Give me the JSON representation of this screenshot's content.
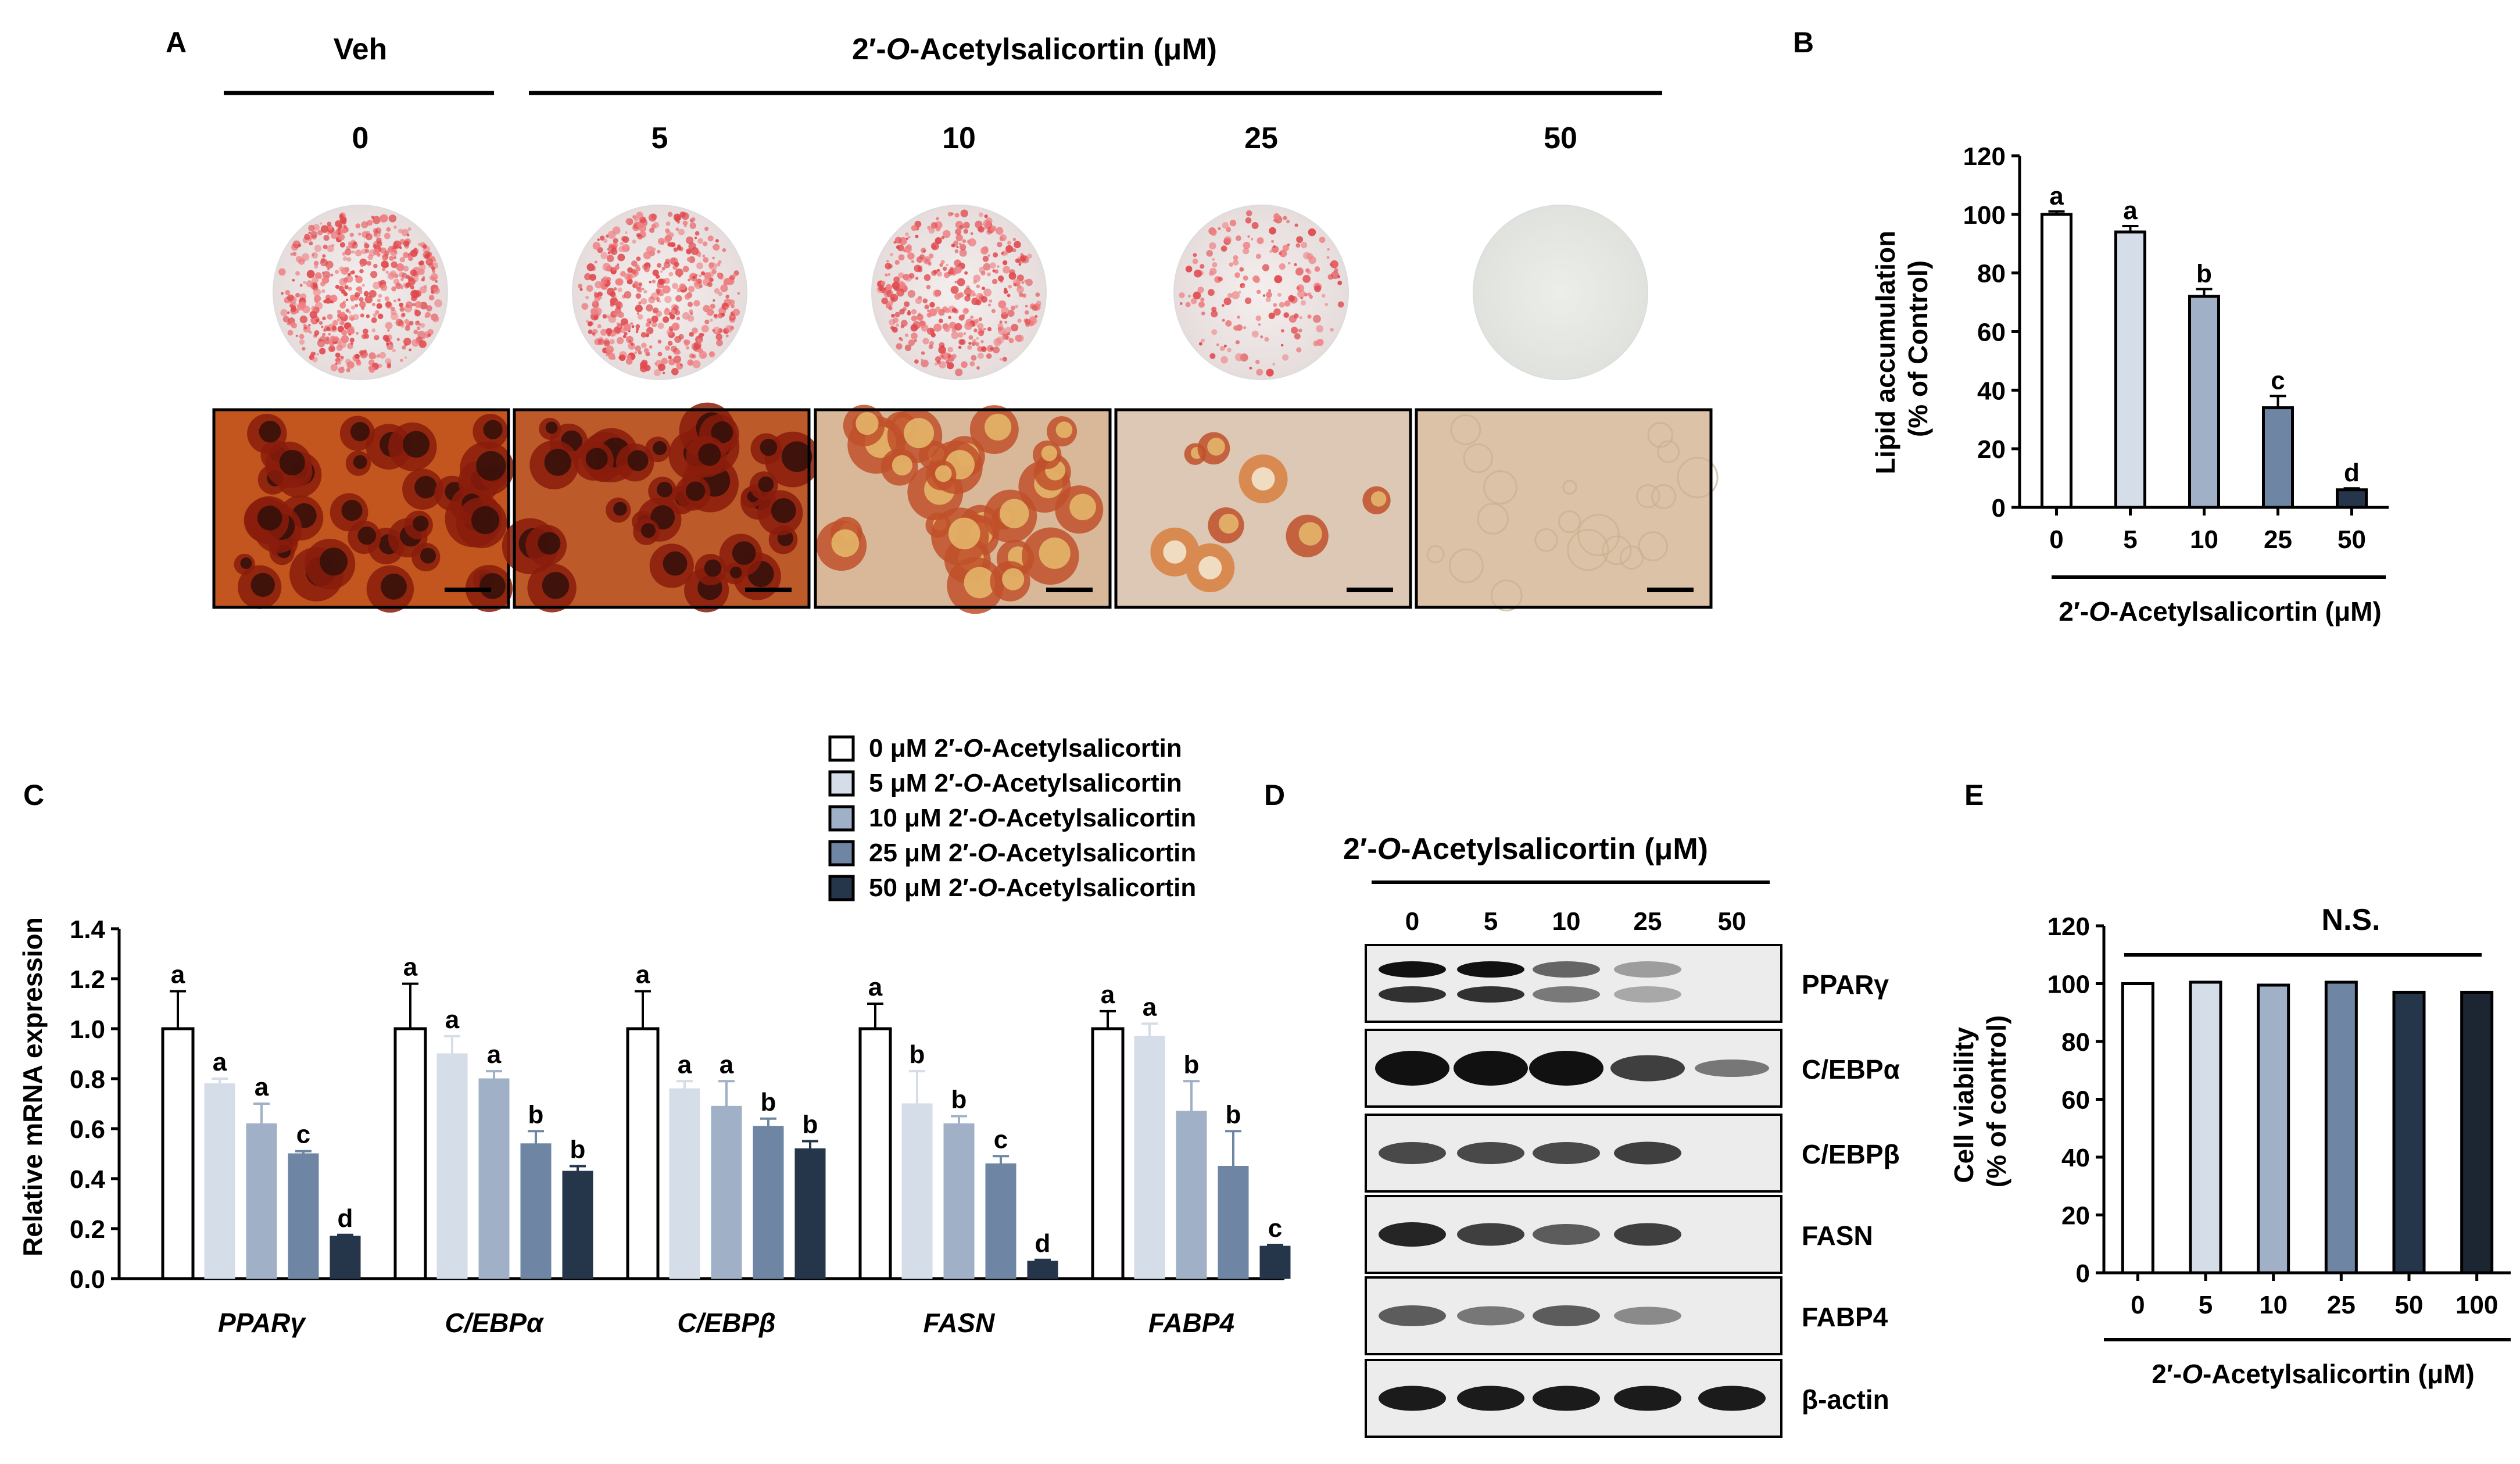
{
  "panels": {
    "a": "A",
    "b": "B",
    "c": "C",
    "d": "D",
    "e": "E"
  },
  "panel_a": {
    "vehicle_label": "Veh",
    "treatment_prefix": "2′-",
    "treatment_italic": "O",
    "treatment_suffix": "-Acetylsalicortin (μM)",
    "doses": [
      "0",
      "5",
      "10",
      "25",
      "50"
    ],
    "stain_intensity": [
      1.0,
      0.9,
      0.75,
      0.35,
      0.0
    ]
  },
  "panel_d": {
    "title_prefix": "2′-",
    "title_italic": "O",
    "title_suffix": "-Acetylsalicortin (μM)",
    "doses": [
      "0",
      "5",
      "10",
      "25",
      "50"
    ],
    "proteins": [
      "PPARγ",
      "C/EBPα",
      "C/EBPβ",
      "FASN",
      "FABP4",
      "β-actin"
    ],
    "band_intensity": [
      [
        1.0,
        1.0,
        0.55,
        0.25,
        0.0
      ],
      [
        1.0,
        1.0,
        1.0,
        0.75,
        0.45
      ],
      [
        0.7,
        0.7,
        0.7,
        0.75,
        0.0
      ],
      [
        0.9,
        0.75,
        0.6,
        0.75,
        0.0
      ],
      [
        0.6,
        0.45,
        0.6,
        0.35,
        0.0
      ],
      [
        0.95,
        0.95,
        0.95,
        0.95,
        0.95
      ]
    ]
  },
  "chart_data": [
    {
      "id": "B",
      "type": "bar",
      "categories": [
        "0",
        "5",
        "10",
        "25",
        "50"
      ],
      "values": [
        100,
        94,
        72,
        34,
        6
      ],
      "errors": [
        1,
        2,
        2.5,
        4,
        0.5
      ],
      "significance": [
        "a",
        "a",
        "b",
        "c",
        "d"
      ],
      "colors": [
        "#ffffff",
        "#d5dde8",
        "#a0b0c6",
        "#6e86a3",
        "#25364b"
      ],
      "ylabel_line1": "Lipid accumulation",
      "ylabel_line2": "(% of Control)",
      "xlabel_prefix": "2′-",
      "xlabel_italic": "O",
      "xlabel_suffix": "-Acetylsalicortin (μM)",
      "yticks": [
        "0",
        "20",
        "40",
        "60",
        "80",
        "100",
        "120"
      ],
      "ylim": [
        0,
        120
      ]
    },
    {
      "id": "C",
      "type": "bar",
      "ylabel": "Relative mRNA expression",
      "categories": [
        "PPARγ",
        "C/EBPα",
        "C/EBPβ",
        "FASN",
        "FABP4"
      ],
      "yticks": [
        "0.0",
        "0.2",
        "0.4",
        "0.6",
        "0.8",
        "1.0",
        "1.2",
        "1.4"
      ],
      "ylim": [
        0,
        1.4
      ],
      "series": [
        {
          "name": "0 μM 2′-O-Acetylsalicortin",
          "legend_prefix": "0 μM 2′-",
          "legend_suffix": "-Acetylsalicortin",
          "color": "#ffffff",
          "values": [
            1.0,
            1.0,
            1.0,
            1.0,
            1.0
          ],
          "errors": [
            0.15,
            0.18,
            0.15,
            0.1,
            0.07
          ],
          "sig": [
            "a",
            "a",
            "a",
            "a",
            "a"
          ]
        },
        {
          "name": "5 μM 2′-O-Acetylsalicortin",
          "legend_prefix": "5 μM 2′-",
          "legend_suffix": "-Acetylsalicortin",
          "color": "#d5dde8",
          "values": [
            0.78,
            0.9,
            0.76,
            0.7,
            0.97
          ],
          "errors": [
            0.02,
            0.07,
            0.03,
            0.13,
            0.05
          ],
          "sig": [
            "a",
            "a",
            "a",
            "b",
            "a"
          ]
        },
        {
          "name": "10 μM 2′-O-Acetylsalicortin",
          "legend_prefix": "10 μM 2′-",
          "legend_suffix": "-Acetylsalicortin",
          "color": "#a0b0c6",
          "values": [
            0.62,
            0.8,
            0.69,
            0.62,
            0.67
          ],
          "errors": [
            0.08,
            0.03,
            0.1,
            0.03,
            0.12
          ],
          "sig": [
            "a",
            "a",
            "a",
            "b",
            "b"
          ]
        },
        {
          "name": "25 μM 2′-O-Acetylsalicortin",
          "legend_prefix": "25 μM 2′-",
          "legend_suffix": "-Acetylsalicortin",
          "color": "#6e86a3",
          "values": [
            0.5,
            0.54,
            0.61,
            0.46,
            0.45
          ],
          "errors": [
            0.01,
            0.05,
            0.03,
            0.03,
            0.14
          ],
          "sig": [
            "c",
            "b",
            "b",
            "c",
            "b"
          ]
        },
        {
          "name": "50 μM 2′-O-Acetylsalicortin",
          "legend_prefix": "50 μM 2′-",
          "legend_suffix": "-Acetylsalicortin",
          "color": "#25364b",
          "values": [
            0.17,
            0.43,
            0.52,
            0.07,
            0.13
          ],
          "errors": [
            0.005,
            0.02,
            0.03,
            0.005,
            0.005
          ],
          "sig": [
            "d",
            "b",
            "b",
            "d",
            "c"
          ]
        }
      ]
    },
    {
      "id": "E",
      "type": "bar",
      "categories": [
        "0",
        "5",
        "10",
        "25",
        "50",
        "100"
      ],
      "values": [
        100,
        100.5,
        99.5,
        100.5,
        97,
        97
      ],
      "colors": [
        "#ffffff",
        "#d5dde8",
        "#a0b0c6",
        "#6e86a3",
        "#25364b",
        "#1c2633"
      ],
      "ylabel_line1": "Cell viability",
      "ylabel_line2": "(% of control)",
      "xlabel_prefix": "2′-",
      "xlabel_italic": "O",
      "xlabel_suffix": "-Acetylsalicortin (μM)",
      "yticks": [
        "0",
        "20",
        "40",
        "60",
        "80",
        "100",
        "120"
      ],
      "ylim": [
        0,
        120
      ],
      "annotation": "N.S."
    }
  ]
}
